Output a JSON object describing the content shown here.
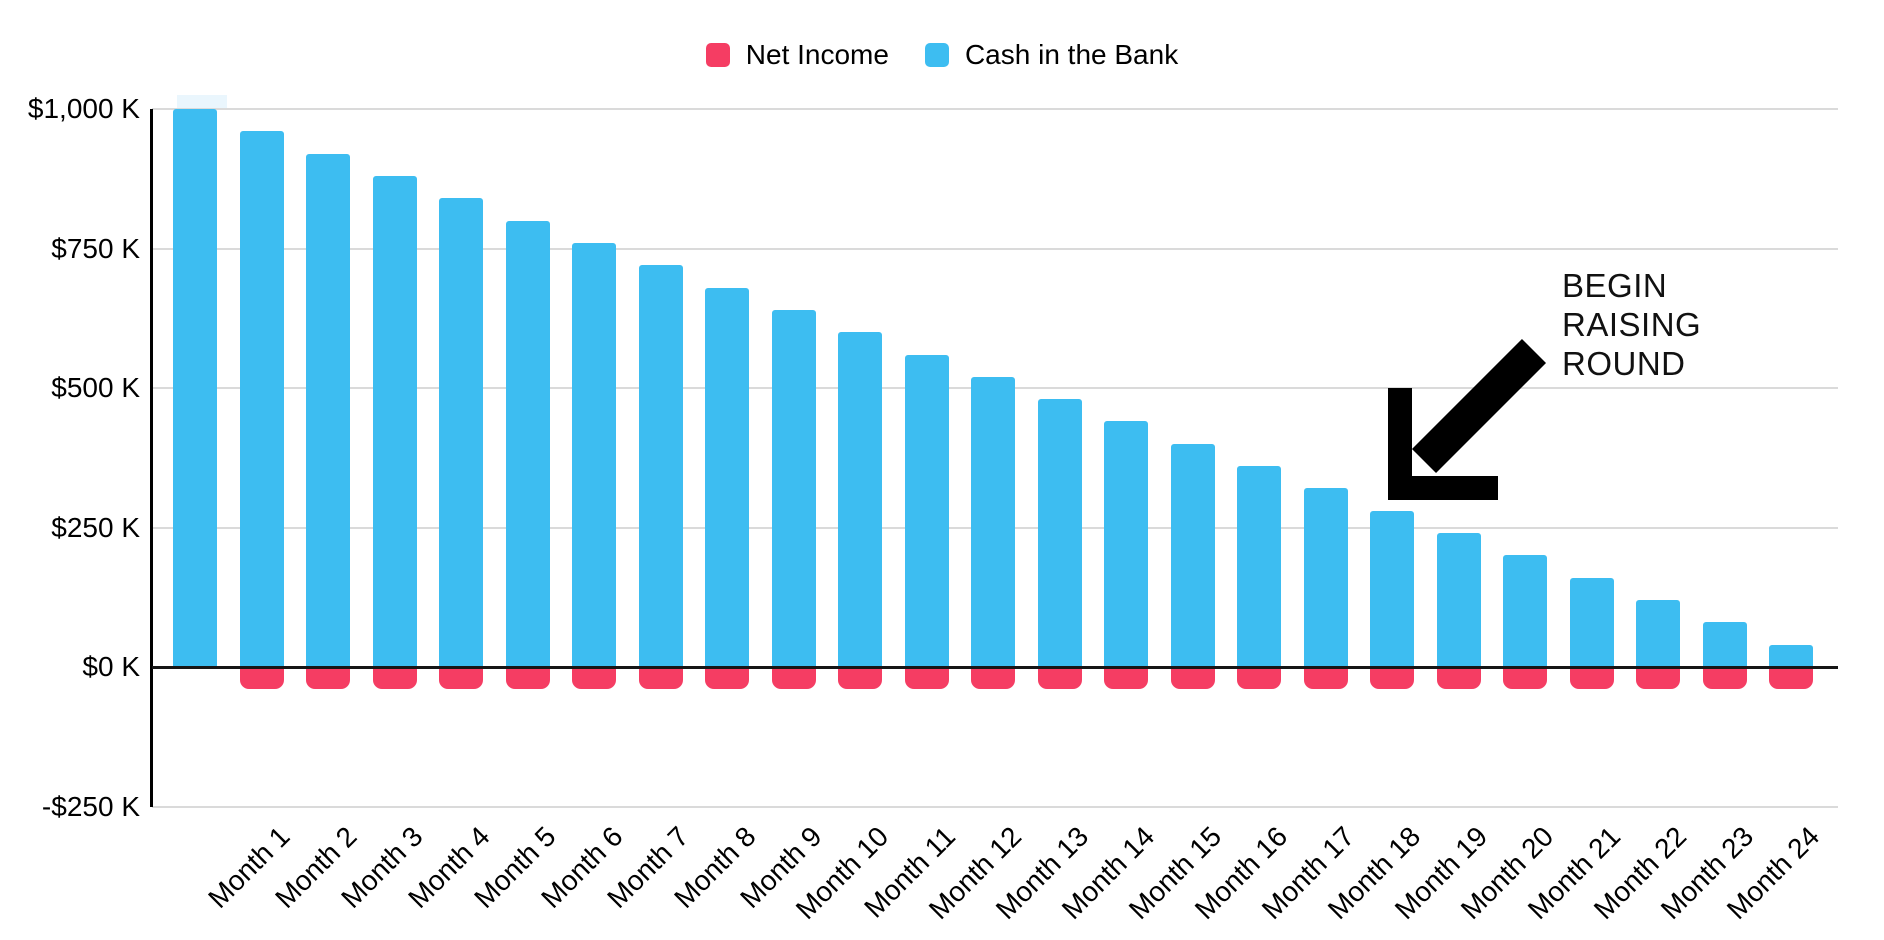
{
  "legend": {
    "items": [
      {
        "label": "Net Income",
        "color": "#F53D63"
      },
      {
        "label": "Cash in the Bank",
        "color": "#3DBDF1"
      }
    ]
  },
  "annotation": {
    "lines": [
      "BEGIN",
      "RAISING",
      "ROUND"
    ]
  },
  "chart_data": {
    "type": "bar",
    "title": "",
    "xlabel": "",
    "ylabel": "",
    "categories": [
      "",
      "Month 1",
      "Month 2",
      "Month 3",
      "Month 4",
      "Month 5",
      "Month 6",
      "Month 7",
      "Month 8",
      "Month 9",
      "Month 10",
      "Month 11",
      "Month 12",
      "Month 13",
      "Month 14",
      "Month 15",
      "Month 16",
      "Month 17",
      "Month 18",
      "Month 19",
      "Month 20",
      "Month 21",
      "Month 22",
      "Month 23",
      "Month 24"
    ],
    "series": [
      {
        "name": "Net Income",
        "color": "#F53D63",
        "values": [
          null,
          -40,
          -40,
          -40,
          -40,
          -40,
          -40,
          -40,
          -40,
          -40,
          -40,
          -40,
          -40,
          -40,
          -40,
          -40,
          -40,
          -40,
          -40,
          -40,
          -40,
          -40,
          -40,
          -40,
          -40
        ]
      },
      {
        "name": "Cash in the Bank",
        "color": "#3DBDF1",
        "values": [
          1000,
          960,
          920,
          880,
          840,
          800,
          760,
          720,
          680,
          640,
          600,
          560,
          520,
          480,
          440,
          400,
          360,
          320,
          280,
          240,
          200,
          160,
          120,
          80,
          40
        ]
      }
    ],
    "yticks": [
      1000,
      750,
      500,
      250,
      0,
      -250
    ],
    "ytick_labels": [
      "$1,000 K",
      "$750 K",
      "$500 K",
      "$250 K",
      "$0 K",
      "-$250 K"
    ],
    "ylim": [
      -250,
      1050
    ],
    "grid": true,
    "legend_position": "top",
    "annotation": {
      "text": "BEGIN RAISING ROUND",
      "target": "Month 18"
    }
  }
}
